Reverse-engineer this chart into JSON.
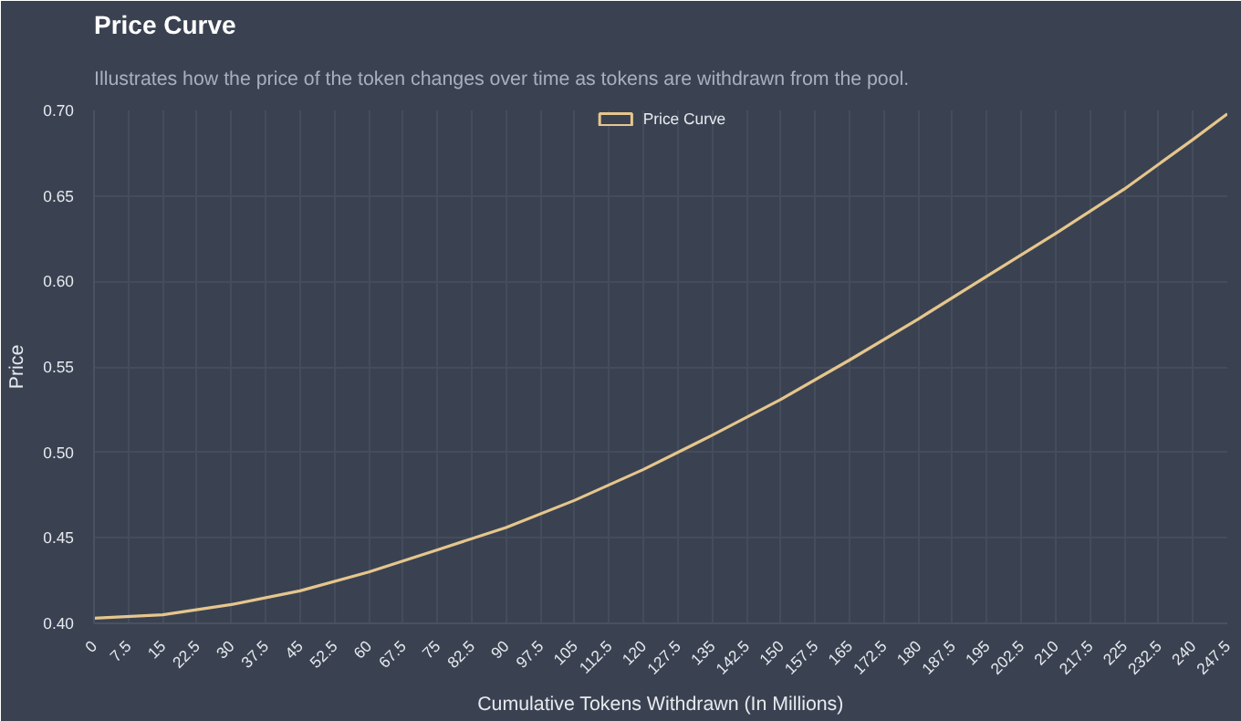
{
  "chart_data": {
    "type": "line",
    "title": "Price Curve",
    "subtitle": "Illustrates how the price of the token changes over time as tokens are withdrawn from the pool.",
    "xlabel": "Cumulative Tokens Withdrawn (In Millions)",
    "ylabel": "Price",
    "x": [
      0,
      15,
      30,
      45,
      60,
      75,
      90,
      105,
      120,
      135,
      150,
      165,
      180,
      195,
      210,
      225,
      240,
      247.5
    ],
    "series": [
      {
        "name": "Price Curve",
        "color": "#e6c68c",
        "values": [
          0.403,
          0.405,
          0.411,
          0.419,
          0.43,
          0.443,
          0.456,
          0.472,
          0.49,
          0.51,
          0.531,
          0.554,
          0.578,
          0.603,
          0.628,
          0.654,
          0.683,
          0.698
        ]
      }
    ],
    "xlim": [
      0,
      247.5
    ],
    "xticks": [
      0,
      7.5,
      15,
      22.5,
      30,
      37.5,
      45,
      52.5,
      60,
      67.5,
      75,
      82.5,
      90,
      97.5,
      105,
      112.5,
      120,
      127.5,
      135,
      142.5,
      150,
      157.5,
      165,
      172.5,
      180,
      187.5,
      195,
      202.5,
      210,
      217.5,
      225,
      232.5,
      240,
      247.5
    ],
    "ylim": [
      0.4,
      0.7
    ],
    "yticks": [
      {
        "value": 0.4,
        "label": "0.40"
      },
      {
        "value": 0.45,
        "label": "0.45"
      },
      {
        "value": 0.5,
        "label": "0.50"
      },
      {
        "value": 0.55,
        "label": "0.55"
      },
      {
        "value": 0.6,
        "label": "0.60"
      },
      {
        "value": 0.65,
        "label": "0.65"
      },
      {
        "value": 0.7,
        "label": "0.70"
      }
    ],
    "grid": true,
    "legend": "top",
    "marker": "none",
    "line_style": "solid"
  }
}
